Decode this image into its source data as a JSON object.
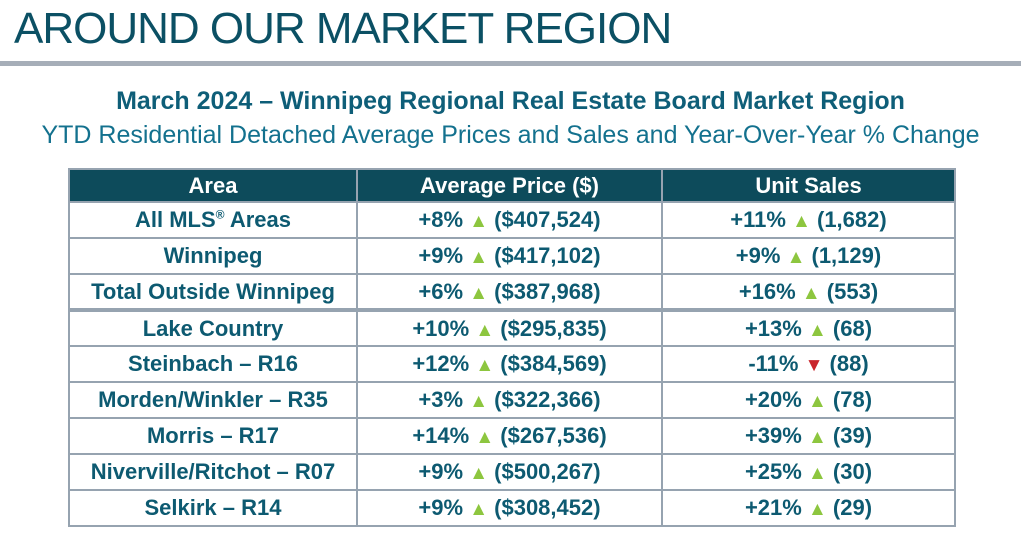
{
  "page": {
    "heading": "AROUND OUR MARKET REGION",
    "title": "March 2024 – Winnipeg Regional Real Estate Board Market Region",
    "subtitle": "YTD Residential Detached Average Prices and Sales and Year-Over-Year % Change"
  },
  "colors": {
    "heading_teal": "#0b5064",
    "title_teal": "#0e5e78",
    "subtitle_teal": "#13718e",
    "rule_gray": "#a6aeb8",
    "header_bg": "#0d4b5b",
    "header_text": "#ffffff",
    "cell_text": "#0d5a71",
    "border_gray": "#96a3b0",
    "up_green": "#8dc63f",
    "down_red": "#c9252c"
  },
  "icons": {
    "up": "▲",
    "down": "▼"
  },
  "table": {
    "columns": [
      "Area",
      "Average Price ($)",
      "Unit Sales"
    ],
    "rows": [
      {
        "area": "All MLS® Areas",
        "price": {
          "change": "+8%",
          "dir": "up",
          "value": "($407,524)"
        },
        "sales": {
          "change": "+11%",
          "dir": "up",
          "value": "(1,682)"
        },
        "thick_top": false
      },
      {
        "area": "Winnipeg",
        "price": {
          "change": "+9%",
          "dir": "up",
          "value": "($417,102)"
        },
        "sales": {
          "change": "+9%",
          "dir": "up",
          "value": "(1,129)"
        },
        "thick_top": false
      },
      {
        "area": "Total Outside Winnipeg",
        "price": {
          "change": "+6%",
          "dir": "up",
          "value": "($387,968)"
        },
        "sales": {
          "change": "+16%",
          "dir": "up",
          "value": "(553)"
        },
        "thick_top": false
      },
      {
        "area": "Lake Country",
        "price": {
          "change": "+10%",
          "dir": "up",
          "value": "($295,835)"
        },
        "sales": {
          "change": "+13%",
          "dir": "up",
          "value": "(68)"
        },
        "thick_top": true
      },
      {
        "area": "Steinbach – R16",
        "price": {
          "change": "+12%",
          "dir": "up",
          "value": "($384,569)"
        },
        "sales": {
          "change": "-11%",
          "dir": "down",
          "value": "(88)"
        },
        "thick_top": false
      },
      {
        "area": "Morden/Winkler – R35",
        "price": {
          "change": "+3%",
          "dir": "up",
          "value": "($322,366)"
        },
        "sales": {
          "change": "+20%",
          "dir": "up",
          "value": "(78)"
        },
        "thick_top": false
      },
      {
        "area": "Morris – R17",
        "price": {
          "change": "+14%",
          "dir": "up",
          "value": "($267,536)"
        },
        "sales": {
          "change": "+39%",
          "dir": "up",
          "value": "(39)"
        },
        "thick_top": false
      },
      {
        "area": "Niverville/Ritchot – R07",
        "price": {
          "change": "+9%",
          "dir": "up",
          "value": "($500,267)"
        },
        "sales": {
          "change": "+25%",
          "dir": "up",
          "value": "(30)"
        },
        "thick_top": false
      },
      {
        "area": "Selkirk – R14",
        "price": {
          "change": "+9%",
          "dir": "up",
          "value": "($308,452)"
        },
        "sales": {
          "change": "+21%",
          "dir": "up",
          "value": "(29)"
        },
        "thick_top": false
      }
    ]
  }
}
